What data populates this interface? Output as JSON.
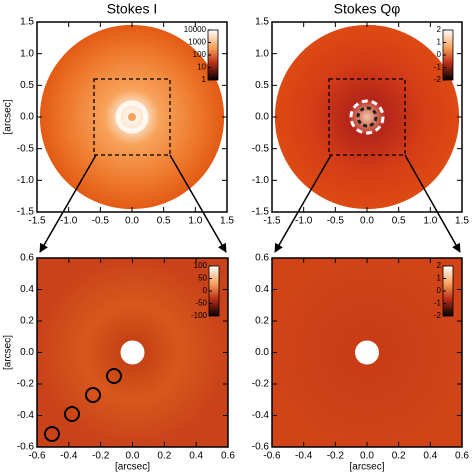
{
  "chart_data": [
    {
      "type": "image",
      "title": "Stokes I",
      "xlim": [
        -1.5,
        1.5
      ],
      "ylim": [
        -1.5,
        1.5
      ],
      "xticks": [
        -1.5,
        {
          "value": -1.0,
          "label": "-1.0"
        },
        -0.5,
        {
          "value": 0,
          "label": "0.0"
        },
        0.5,
        {
          "value": 1.0,
          "label": "1.0"
        },
        1.5
      ],
      "yticks": [
        -1.5,
        {
          "value": -1.0,
          "label": "-1.0"
        },
        -0.5,
        {
          "value": 0,
          "label": "0.0"
        },
        0.5,
        {
          "value": 1.0,
          "label": "1.0"
        },
        1.5
      ],
      "ylabel": "[arcsec]",
      "colorbar": {
        "lim": [
          1,
          10000
        ],
        "log": true,
        "ticks": [
          10000,
          1000,
          100,
          10,
          1
        ]
      }
    },
    {
      "type": "image",
      "title": "Stokes Qφ",
      "xlim": [
        -1.5,
        1.5
      ],
      "ylim": [
        -1.5,
        1.5
      ],
      "xticks": [
        -1.5,
        {
          "value": -1.0,
          "label": "-1.0"
        },
        -0.5,
        {
          "value": 0,
          "label": "0.0"
        },
        0.5,
        {
          "value": 1.0,
          "label": "1.0"
        },
        1.5
      ],
      "yticks": [
        -1.5,
        {
          "value": -1.0,
          "label": "-1.0"
        },
        -0.5,
        {
          "value": 0,
          "label": "0.0"
        },
        0.5,
        {
          "value": 1.0,
          "label": "1.0"
        },
        1.5
      ],
      "colorbar": {
        "lim": [
          -2,
          2
        ],
        "log": false,
        "ticks": [
          2,
          1,
          0,
          -1,
          -2
        ]
      }
    },
    {
      "type": "image",
      "xlim": [
        -0.6,
        0.6
      ],
      "ylim": [
        -0.6,
        0.6
      ],
      "xticks": [
        -0.6,
        -0.4,
        -0.2,
        {
          "value": 0,
          "label": "0.0"
        },
        0.2,
        0.4,
        0.6
      ],
      "yticks": [
        -0.6,
        -0.4,
        -0.2,
        {
          "value": 0,
          "label": "0.0"
        },
        0.2,
        0.4,
        0.6
      ],
      "xlabel": "[arcsec]",
      "ylabel": "[arcsec]",
      "colorbar": {
        "lim": [
          -100,
          100
        ],
        "log": false,
        "ticks": [
          100,
          50,
          0,
          -50,
          -100
        ]
      }
    },
    {
      "type": "image",
      "xlim": [
        -0.6,
        0.6
      ],
      "ylim": [
        -0.6,
        0.6
      ],
      "xticks": [
        -0.6,
        -0.4,
        -0.2,
        {
          "value": 0,
          "label": "0.0"
        },
        0.2,
        0.4,
        0.6
      ],
      "yticks": [
        -0.6,
        -0.4,
        -0.2,
        {
          "value": 0,
          "label": "0.0"
        },
        0.2,
        0.4,
        0.6
      ],
      "xlabel": "[arcsec]",
      "colorbar": {
        "lim": [
          -2,
          2
        ],
        "log": false,
        "ticks": [
          2,
          1,
          0,
          -1,
          -2
        ]
      }
    }
  ]
}
